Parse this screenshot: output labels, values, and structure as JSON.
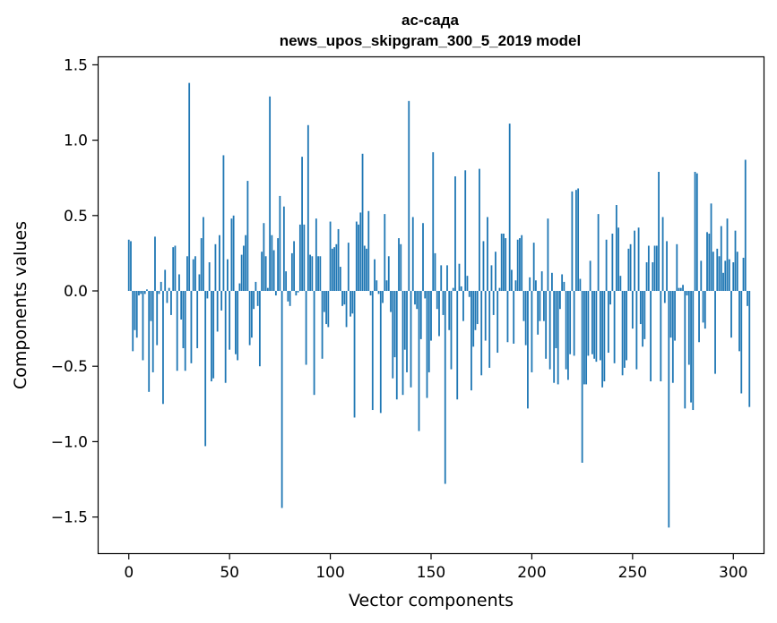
{
  "chart_data": {
    "type": "bar",
    "title": "ас-сада",
    "subtitle": "news_upos_skipgram_300_5_2019 model",
    "xlabel": "Vector components",
    "ylabel": "Components values",
    "xlim": [
      -15,
      315
    ],
    "ylim": [
      -1.74,
      1.55
    ],
    "xticks": [
      0,
      50,
      100,
      150,
      200,
      250,
      300
    ],
    "xtick_labels": [
      "0",
      "50",
      "100",
      "150",
      "200",
      "250",
      "300"
    ],
    "yticks": [
      -1.5,
      -1.0,
      -0.5,
      0.0,
      0.5,
      1.0,
      1.5
    ],
    "ytick_labels": [
      "−1.5",
      "−1.0",
      "−0.5",
      "0.0",
      "0.5",
      "1.0",
      "1.5"
    ],
    "grid": false,
    "bar_color": "#1f77b4",
    "values": [
      0.34,
      0.33,
      -0.4,
      -0.26,
      -0.31,
      -0.03,
      -0.02,
      -0.46,
      -0.02,
      0.01,
      -0.67,
      -0.2,
      -0.54,
      0.36,
      -0.36,
      -0.02,
      0.06,
      -0.75,
      0.14,
      -0.08,
      0.02,
      -0.16,
      0.29,
      0.3,
      -0.53,
      0.11,
      -0.19,
      -0.38,
      -0.53,
      0.23,
      1.38,
      -0.48,
      0.21,
      0.23,
      -0.38,
      0.11,
      0.35,
      0.49,
      -1.03,
      -0.05,
      0.19,
      -0.6,
      -0.58,
      0.31,
      -0.27,
      0.37,
      -0.13,
      0.9,
      -0.61,
      0.21,
      -0.39,
      0.48,
      0.5,
      -0.42,
      -0.46,
      0.05,
      0.24,
      0.3,
      0.37,
      0.73,
      -0.36,
      -0.31,
      -0.12,
      0.06,
      -0.1,
      -0.5,
      0.26,
      0.45,
      0.23,
      0.02,
      1.29,
      0.37,
      0.27,
      -0.03,
      0.35,
      0.63,
      -1.44,
      0.56,
      0.13,
      -0.07,
      -0.1,
      0.25,
      0.33,
      -0.03,
      -0.01,
      0.44,
      0.89,
      0.44,
      -0.49,
      1.1,
      0.24,
      0.23,
      -0.69,
      0.48,
      0.23,
      0.23,
      -0.45,
      -0.14,
      -0.22,
      -0.24,
      0.46,
      0.28,
      0.29,
      0.31,
      0.41,
      0.16,
      -0.1,
      -0.09,
      -0.24,
      0.32,
      -0.17,
      -0.15,
      -0.84,
      0.46,
      0.44,
      0.52,
      0.91,
      0.3,
      0.28,
      0.53,
      -0.03,
      -0.79,
      0.21,
      0.07,
      -0.02,
      -0.81,
      -0.08,
      0.51,
      0.07,
      0.23,
      -0.14,
      -0.58,
      -0.44,
      -0.72,
      0.35,
      0.31,
      -0.69,
      -0.39,
      -0.54,
      1.26,
      -0.64,
      0.49,
      -0.09,
      -0.12,
      -0.93,
      -0.32,
      0.45,
      -0.05,
      -0.71,
      -0.54,
      -0.33,
      0.92,
      0.25,
      -0.12,
      -0.3,
      0.17,
      -0.16,
      -1.28,
      0.17,
      -0.26,
      -0.52,
      0.02,
      0.76,
      -0.72,
      0.18,
      0.03,
      -0.2,
      0.8,
      0.1,
      -0.04,
      -0.66,
      -0.37,
      -0.26,
      -0.22,
      0.81,
      -0.56,
      0.33,
      -0.33,
      0.49,
      -0.51,
      0.17,
      -0.16,
      0.26,
      -0.41,
      0.02,
      0.38,
      0.38,
      0.35,
      -0.34,
      1.11,
      0.14,
      -0.35,
      0.07,
      0.34,
      0.35,
      0.37,
      -0.2,
      -0.36,
      -0.78,
      0.09,
      -0.54,
      0.32,
      0.07,
      -0.29,
      -0.2,
      0.13,
      -0.2,
      -0.45,
      0.48,
      -0.52,
      0.12,
      -0.61,
      -0.38,
      -0.62,
      -0.12,
      0.11,
      0.06,
      -0.52,
      -0.59,
      -0.42,
      0.66,
      -0.43,
      0.67,
      0.68,
      0.08,
      -1.14,
      -0.62,
      -0.62,
      -0.43,
      0.2,
      -0.42,
      -0.45,
      -0.47,
      0.51,
      -0.46,
      -0.64,
      -0.6,
      0.34,
      -0.41,
      -0.09,
      0.38,
      -0.48,
      0.57,
      0.42,
      0.1,
      -0.56,
      -0.51,
      -0.46,
      0.28,
      0.31,
      -0.25,
      0.4,
      -0.52,
      0.42,
      -0.22,
      -0.37,
      -0.32,
      0.19,
      0.3,
      -0.6,
      0.19,
      0.3,
      0.3,
      0.79,
      -0.6,
      0.49,
      -0.08,
      0.33,
      -1.57,
      -0.31,
      -0.61,
      -0.33,
      0.31,
      0.02,
      0.02,
      0.04,
      -0.78,
      -0.03,
      -0.49,
      -0.74,
      -0.79,
      0.79,
      0.78,
      -0.34,
      0.2,
      -0.21,
      -0.25,
      0.39,
      0.38,
      0.58,
      0.26,
      -0.55,
      0.28,
      0.23,
      0.43,
      0.12,
      0.2,
      0.48,
      0.21,
      -0.31,
      0.19,
      0.4,
      0.26,
      -0.4,
      -0.68,
      0.22,
      0.87,
      -0.1,
      -0.77
    ]
  }
}
